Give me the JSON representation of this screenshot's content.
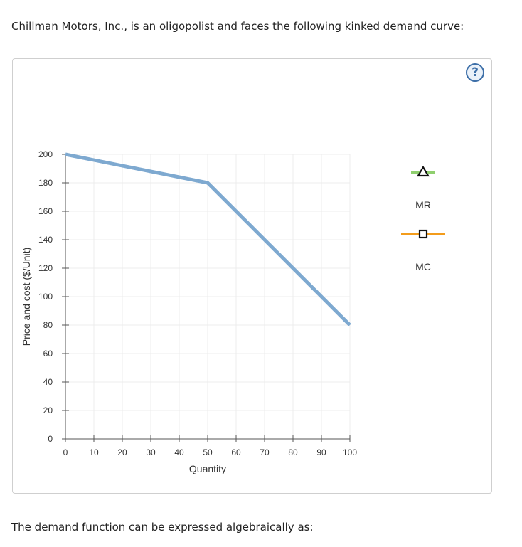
{
  "question": {
    "intro": "Chillman Motors, Inc., is an oligopolist and faces the following kinked demand curve:",
    "outro": "The demand function can be expressed algebraically as:"
  },
  "help": {
    "label": "?"
  },
  "chart_data": {
    "type": "line",
    "title": "",
    "xlabel": "Quantity",
    "ylabel": "Price and cost ($/Unit)",
    "xlim": [
      0,
      100
    ],
    "ylim": [
      0,
      200
    ],
    "xticks": [
      0,
      10,
      20,
      30,
      40,
      50,
      60,
      70,
      80,
      90,
      100
    ],
    "yticks": [
      0,
      20,
      40,
      60,
      80,
      100,
      120,
      140,
      160,
      180,
      200
    ],
    "grid": true,
    "series": [
      {
        "x": [
          0,
          50,
          100
        ],
        "y": [
          200,
          180,
          80
        ],
        "color": "#7ea9d0"
      }
    ],
    "legend": {
      "placement": "right",
      "entries": [
        {
          "name": "MR",
          "line_color": "#8fcf6e",
          "marker": "triangle"
        },
        {
          "name": "MC",
          "line_color": "#f39c1b",
          "marker": "square"
        }
      ]
    }
  }
}
